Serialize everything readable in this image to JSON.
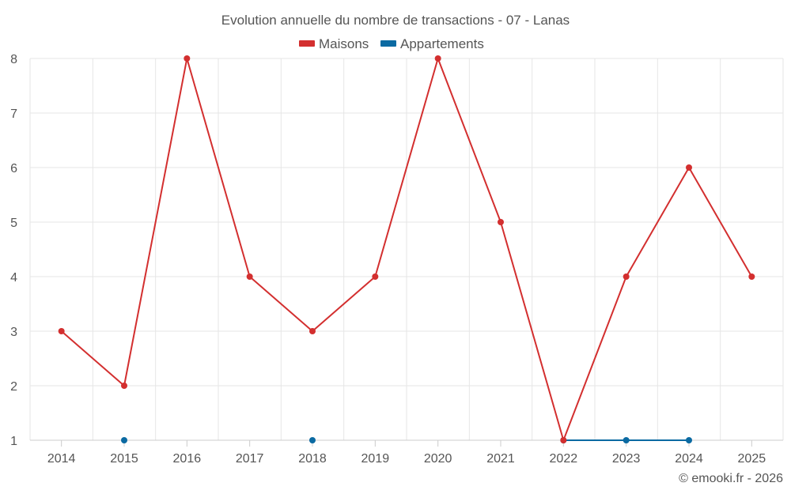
{
  "chart_data": {
    "type": "line",
    "title": "Evolution annuelle du nombre de transactions - 07 - Lanas",
    "x": [
      "2014",
      "2015",
      "2016",
      "2017",
      "2018",
      "2019",
      "2020",
      "2021",
      "2022",
      "2023",
      "2024",
      "2025"
    ],
    "y_ticks": [
      "1",
      "2",
      "3",
      "4",
      "5",
      "6",
      "7",
      "8"
    ],
    "ylim": [
      1,
      8
    ],
    "grid": true,
    "legend_position": "top-center",
    "series": [
      {
        "name": "Maisons",
        "color": "#d32f2f",
        "values": [
          3,
          2,
          8,
          4,
          3,
          4,
          8,
          5,
          1,
          4,
          6,
          4
        ]
      },
      {
        "name": "Appartements",
        "color": "#0b6aa2",
        "values": [
          null,
          1,
          null,
          null,
          1,
          null,
          null,
          null,
          1,
          1,
          1,
          null
        ]
      }
    ],
    "credit": "© emooki.fr - 2026"
  }
}
